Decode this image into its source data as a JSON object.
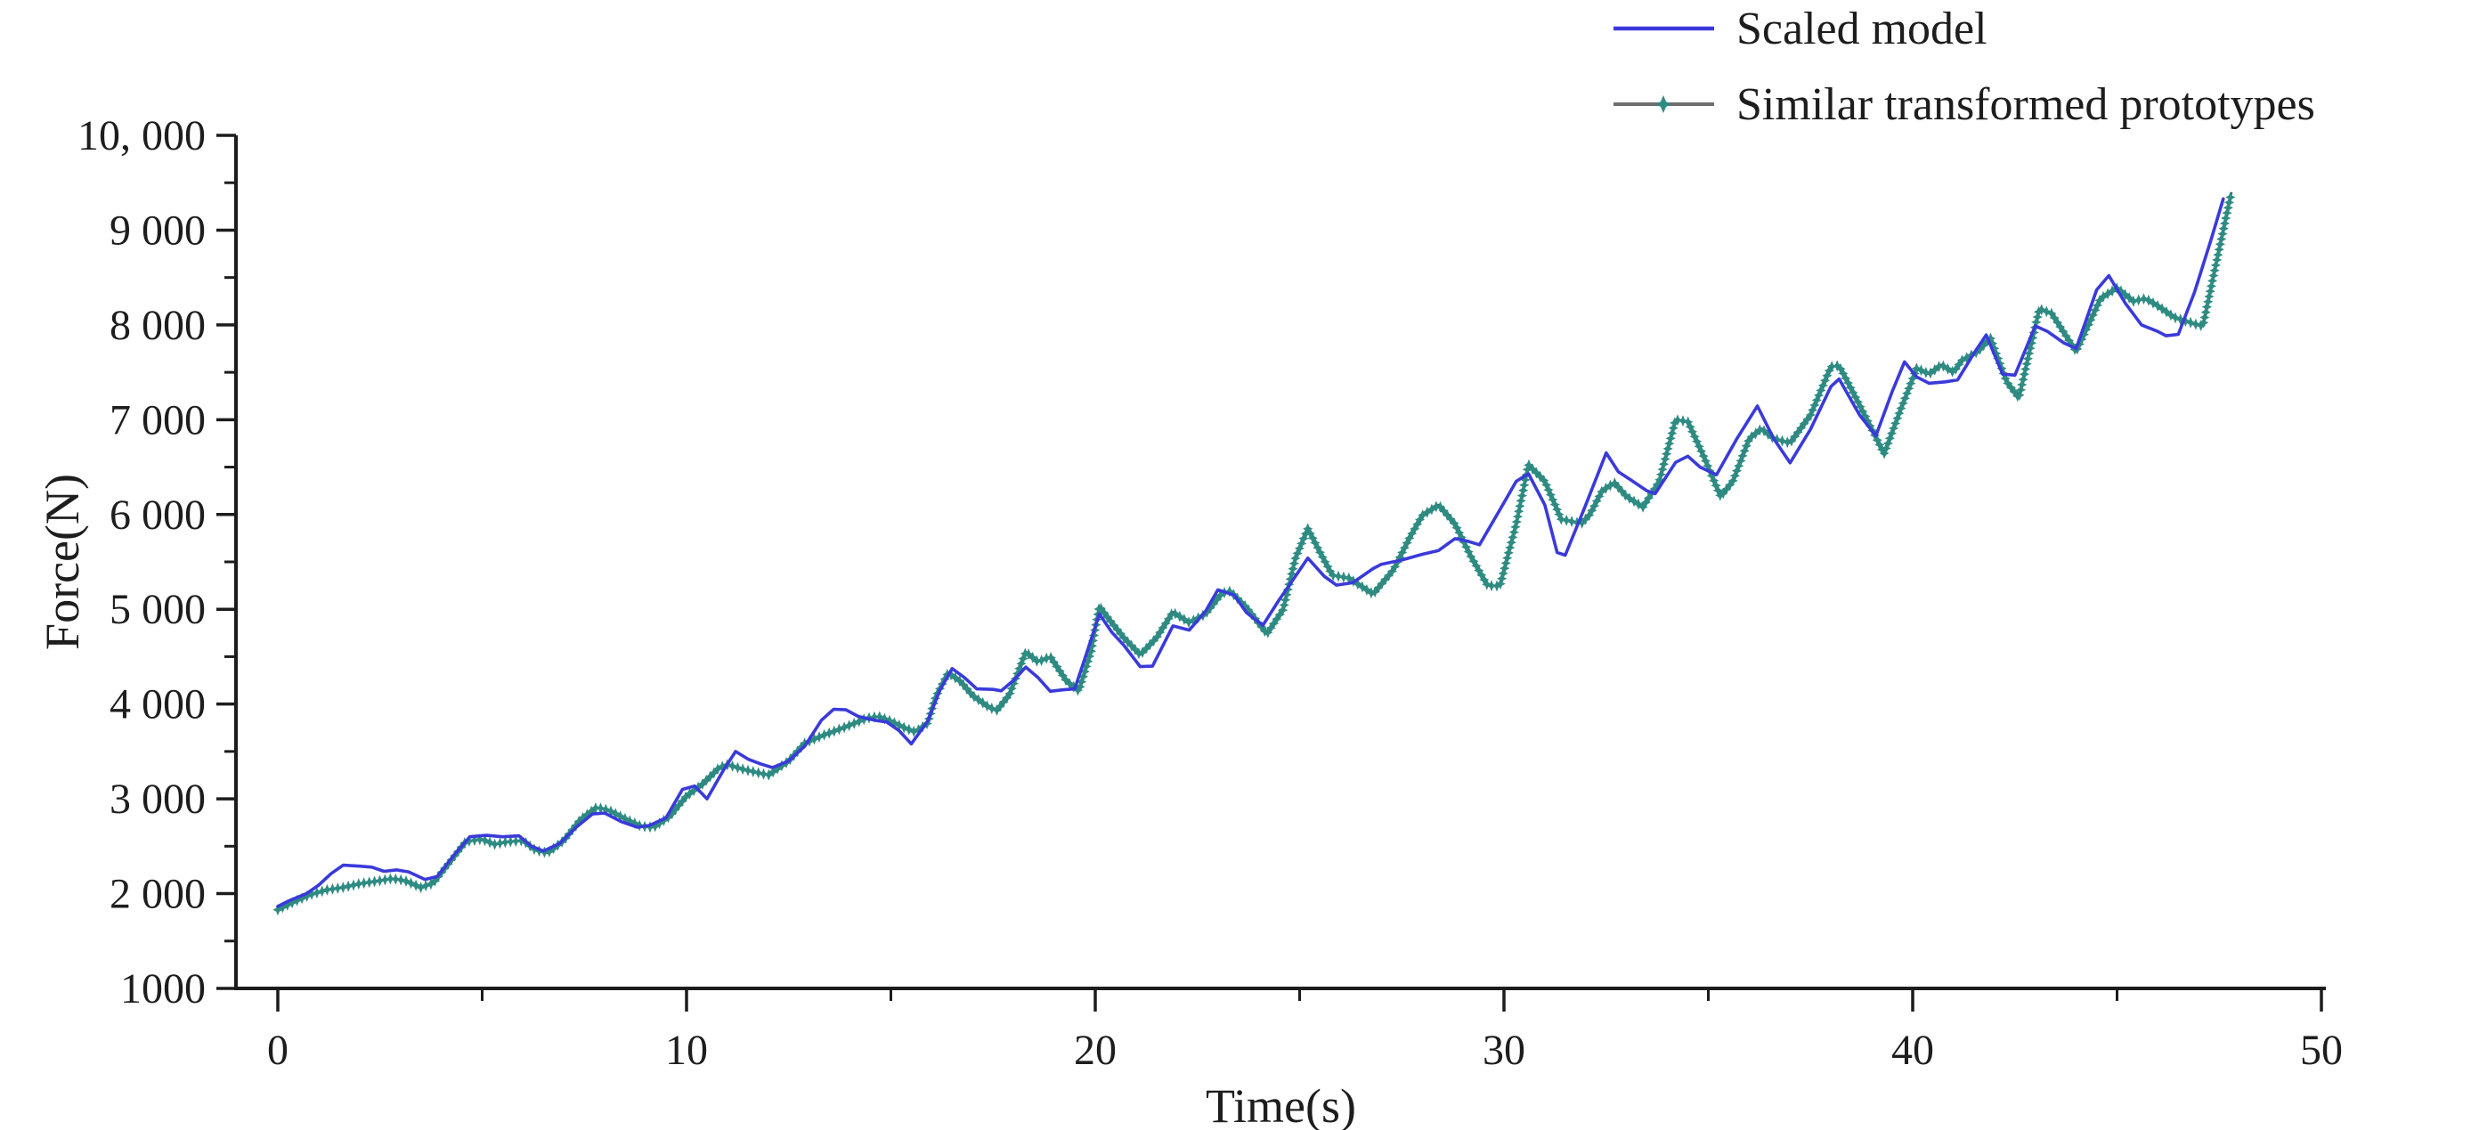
{
  "figure": {
    "kind": "scientific-line-chart",
    "background": "#ffffff"
  },
  "colors": {
    "scaled_model_line": "#3a3ada",
    "prototypes_marker": "#2e8b82",
    "prototypes_connector": "#4d4d4d",
    "legend_line2": "#6e6e6e",
    "axis": "#1c1c1c",
    "text": "#1d1d1d"
  },
  "legend": {
    "items": [
      {
        "label": "Scaled model"
      },
      {
        "label": "Similar transformed prototypes"
      }
    ]
  },
  "chart_data": {
    "type": "line",
    "title": "",
    "xlabel": "Time(s)",
    "ylabel": "Force(N)",
    "xlim": [
      0,
      50
    ],
    "ylim": [
      1000,
      10000
    ],
    "grid": false,
    "legend_position": "top-right",
    "x_axis": {
      "major_ticks": [
        0,
        10,
        20,
        30,
        40,
        50
      ],
      "major_labels": [
        "0",
        "10",
        "20",
        "30",
        "40",
        "50"
      ],
      "minor_ticks": [
        5,
        15,
        25,
        35,
        45
      ]
    },
    "y_axis": {
      "major_ticks": [
        1000,
        2000,
        3000,
        4000,
        5000,
        6000,
        7000,
        8000,
        9000,
        10000
      ],
      "major_labels": [
        "1000",
        "2 000",
        "3 000",
        "4 000",
        "5 000",
        "6 000",
        "7 000",
        "8 000",
        "9 000",
        "10, 000"
      ],
      "minor_ticks": [
        1500,
        2500,
        3500,
        4500,
        5500,
        6500,
        7500,
        8500,
        9500
      ]
    },
    "series": [
      {
        "name": "Scaled model",
        "style": "line",
        "color": "#3a3ada",
        "points": [
          [
            0,
            1865
          ],
          [
            0.3,
            1930
          ],
          [
            0.7,
            2000
          ],
          [
            1.0,
            2090
          ],
          [
            1.3,
            2210
          ],
          [
            1.6,
            2300
          ],
          [
            2.0,
            2290
          ],
          [
            2.3,
            2280
          ],
          [
            2.6,
            2235
          ],
          [
            2.9,
            2250
          ],
          [
            3.2,
            2230
          ],
          [
            3.6,
            2150
          ],
          [
            3.9,
            2180
          ],
          [
            4.3,
            2400
          ],
          [
            4.7,
            2600
          ],
          [
            5.1,
            2615
          ],
          [
            5.5,
            2600
          ],
          [
            5.9,
            2610
          ],
          [
            6.2,
            2500
          ],
          [
            6.5,
            2450
          ],
          [
            6.9,
            2530
          ],
          [
            7.3,
            2700
          ],
          [
            7.7,
            2840
          ],
          [
            8.0,
            2850
          ],
          [
            8.4,
            2760
          ],
          [
            8.8,
            2700
          ],
          [
            9.1,
            2720
          ],
          [
            9.5,
            2800
          ],
          [
            9.9,
            3100
          ],
          [
            10.2,
            3135
          ],
          [
            10.5,
            3000
          ],
          [
            10.9,
            3300
          ],
          [
            11.2,
            3500
          ],
          [
            11.5,
            3420
          ],
          [
            11.8,
            3370
          ],
          [
            12.1,
            3330
          ],
          [
            12.5,
            3400
          ],
          [
            12.9,
            3560
          ],
          [
            13.3,
            3830
          ],
          [
            13.6,
            3945
          ],
          [
            13.9,
            3940
          ],
          [
            14.2,
            3870
          ],
          [
            14.6,
            3830
          ],
          [
            14.9,
            3810
          ],
          [
            15.2,
            3720
          ],
          [
            15.5,
            3580
          ],
          [
            15.9,
            3820
          ],
          [
            16.2,
            4150
          ],
          [
            16.5,
            4375
          ],
          [
            16.8,
            4280
          ],
          [
            17.1,
            4160
          ],
          [
            17.5,
            4155
          ],
          [
            17.7,
            4140
          ],
          [
            18.0,
            4250
          ],
          [
            18.3,
            4390
          ],
          [
            18.6,
            4280
          ],
          [
            18.9,
            4135
          ],
          [
            19.2,
            4150
          ],
          [
            19.5,
            4160
          ],
          [
            19.8,
            4550
          ],
          [
            20.1,
            4950
          ],
          [
            20.4,
            4760
          ],
          [
            20.7,
            4620
          ],
          [
            21.1,
            4395
          ],
          [
            21.4,
            4400
          ],
          [
            21.9,
            4825
          ],
          [
            22.3,
            4780
          ],
          [
            22.7,
            4980
          ],
          [
            23.0,
            5205
          ],
          [
            23.4,
            5150
          ],
          [
            23.7,
            4965
          ],
          [
            24.1,
            4830
          ],
          [
            24.5,
            5100
          ],
          [
            24.9,
            5350
          ],
          [
            25.2,
            5540
          ],
          [
            25.6,
            5350
          ],
          [
            25.9,
            5255
          ],
          [
            26.3,
            5280
          ],
          [
            26.8,
            5430
          ],
          [
            27.0,
            5475
          ],
          [
            27.5,
            5520
          ],
          [
            28.0,
            5580
          ],
          [
            28.4,
            5620
          ],
          [
            28.8,
            5745
          ],
          [
            29.1,
            5720
          ],
          [
            29.4,
            5680
          ],
          [
            29.9,
            6050
          ],
          [
            30.3,
            6350
          ],
          [
            30.6,
            6430
          ],
          [
            31.0,
            6100
          ],
          [
            31.3,
            5600
          ],
          [
            31.5,
            5570
          ],
          [
            32.0,
            6100
          ],
          [
            32.5,
            6650
          ],
          [
            32.8,
            6450
          ],
          [
            33.1,
            6365
          ],
          [
            33.5,
            6250
          ],
          [
            33.7,
            6220
          ],
          [
            34.2,
            6550
          ],
          [
            34.5,
            6615
          ],
          [
            34.8,
            6500
          ],
          [
            35.2,
            6420
          ],
          [
            35.7,
            6800
          ],
          [
            36.2,
            7145
          ],
          [
            36.6,
            6800
          ],
          [
            37.0,
            6545
          ],
          [
            37.5,
            6900
          ],
          [
            38.0,
            7350
          ],
          [
            38.2,
            7430
          ],
          [
            38.7,
            7050
          ],
          [
            39.1,
            6830
          ],
          [
            39.5,
            7300
          ],
          [
            39.8,
            7610
          ],
          [
            40.1,
            7450
          ],
          [
            40.4,
            7385
          ],
          [
            40.8,
            7400
          ],
          [
            41.1,
            7420
          ],
          [
            41.5,
            7700
          ],
          [
            41.8,
            7895
          ],
          [
            42.2,
            7480
          ],
          [
            42.5,
            7470
          ],
          [
            43.0,
            7990
          ],
          [
            43.3,
            7930
          ],
          [
            43.7,
            7810
          ],
          [
            44.0,
            7750
          ],
          [
            44.5,
            8370
          ],
          [
            44.8,
            8520
          ],
          [
            45.2,
            8230
          ],
          [
            45.6,
            8000
          ],
          [
            46.0,
            7930
          ],
          [
            46.2,
            7885
          ],
          [
            46.5,
            7900
          ],
          [
            46.9,
            8350
          ],
          [
            47.3,
            8900
          ],
          [
            47.6,
            9330
          ]
        ]
      },
      {
        "name": "Similar transformed prototypes",
        "style": "line+markers",
        "marker": "four-point-star",
        "color": "#2e8b82",
        "points": [
          [
            0,
            1830
          ],
          [
            0.4,
            1915
          ],
          [
            0.8,
            1990
          ],
          [
            1.2,
            2040
          ],
          [
            1.6,
            2065
          ],
          [
            2.0,
            2105
          ],
          [
            2.4,
            2130
          ],
          [
            2.8,
            2158
          ],
          [
            3.1,
            2140
          ],
          [
            3.5,
            2065
          ],
          [
            3.8,
            2110
          ],
          [
            4.2,
            2330
          ],
          [
            4.6,
            2550
          ],
          [
            5.0,
            2575
          ],
          [
            5.3,
            2520
          ],
          [
            5.6,
            2545
          ],
          [
            6.0,
            2560
          ],
          [
            6.3,
            2460
          ],
          [
            6.6,
            2430
          ],
          [
            7.0,
            2560
          ],
          [
            7.4,
            2780
          ],
          [
            7.8,
            2910
          ],
          [
            8.1,
            2880
          ],
          [
            8.5,
            2790
          ],
          [
            8.9,
            2710
          ],
          [
            9.2,
            2700
          ],
          [
            9.6,
            2820
          ],
          [
            10.0,
            3030
          ],
          [
            10.4,
            3160
          ],
          [
            10.8,
            3330
          ],
          [
            11.0,
            3360
          ],
          [
            11.4,
            3310
          ],
          [
            12.0,
            3250
          ],
          [
            12.5,
            3400
          ],
          [
            12.9,
            3590
          ],
          [
            13.4,
            3680
          ],
          [
            13.9,
            3760
          ],
          [
            14.4,
            3850
          ],
          [
            14.7,
            3870
          ],
          [
            15.0,
            3820
          ],
          [
            15.3,
            3755
          ],
          [
            15.6,
            3705
          ],
          [
            15.9,
            3800
          ],
          [
            16.1,
            4080
          ],
          [
            16.4,
            4330
          ],
          [
            16.7,
            4240
          ],
          [
            17.0,
            4090
          ],
          [
            17.4,
            3965
          ],
          [
            17.6,
            3935
          ],
          [
            17.9,
            4100
          ],
          [
            18.3,
            4550
          ],
          [
            18.6,
            4445
          ],
          [
            18.9,
            4500
          ],
          [
            19.3,
            4240
          ],
          [
            19.6,
            4140
          ],
          [
            19.9,
            4560
          ],
          [
            20.1,
            5030
          ],
          [
            20.4,
            4860
          ],
          [
            20.7,
            4700
          ],
          [
            21.1,
            4520
          ],
          [
            21.5,
            4700
          ],
          [
            21.9,
            4970
          ],
          [
            22.3,
            4860
          ],
          [
            22.7,
            4950
          ],
          [
            23.1,
            5170
          ],
          [
            23.3,
            5190
          ],
          [
            23.7,
            5020
          ],
          [
            24.2,
            4740
          ],
          [
            24.6,
            5000
          ],
          [
            24.9,
            5540
          ],
          [
            25.2,
            5850
          ],
          [
            25.5,
            5600
          ],
          [
            25.8,
            5360
          ],
          [
            26.2,
            5330
          ],
          [
            26.8,
            5160
          ],
          [
            27.3,
            5420
          ],
          [
            27.7,
            5760
          ],
          [
            28.0,
            5990
          ],
          [
            28.4,
            6100
          ],
          [
            28.8,
            5900
          ],
          [
            29.2,
            5550
          ],
          [
            29.6,
            5250
          ],
          [
            29.9,
            5245
          ],
          [
            30.3,
            5900
          ],
          [
            30.6,
            6525
          ],
          [
            31.0,
            6350
          ],
          [
            31.4,
            5950
          ],
          [
            31.9,
            5905
          ],
          [
            32.1,
            6000
          ],
          [
            32.4,
            6250
          ],
          [
            32.7,
            6335
          ],
          [
            33.0,
            6190
          ],
          [
            33.4,
            6080
          ],
          [
            33.8,
            6350
          ],
          [
            34.2,
            7000
          ],
          [
            34.5,
            6980
          ],
          [
            34.9,
            6600
          ],
          [
            35.3,
            6190
          ],
          [
            35.6,
            6350
          ],
          [
            36.0,
            6800
          ],
          [
            36.3,
            6905
          ],
          [
            36.6,
            6800
          ],
          [
            37.0,
            6755
          ],
          [
            37.5,
            7050
          ],
          [
            38.0,
            7560
          ],
          [
            38.2,
            7570
          ],
          [
            38.6,
            7240
          ],
          [
            39.0,
            6900
          ],
          [
            39.3,
            6640
          ],
          [
            39.7,
            7100
          ],
          [
            40.1,
            7545
          ],
          [
            40.4,
            7480
          ],
          [
            40.7,
            7580
          ],
          [
            41.0,
            7500
          ],
          [
            41.2,
            7625
          ],
          [
            41.6,
            7720
          ],
          [
            41.9,
            7865
          ],
          [
            42.3,
            7400
          ],
          [
            42.6,
            7230
          ],
          [
            43.1,
            8170
          ],
          [
            43.4,
            8120
          ],
          [
            44.0,
            7720
          ],
          [
            44.6,
            8280
          ],
          [
            45.0,
            8390
          ],
          [
            45.4,
            8250
          ],
          [
            45.7,
            8280
          ],
          [
            46.0,
            8200
          ],
          [
            46.4,
            8080
          ],
          [
            46.9,
            8010
          ],
          [
            47.1,
            7990
          ],
          [
            47.4,
            8600
          ],
          [
            47.8,
            9400
          ]
        ]
      }
    ]
  }
}
